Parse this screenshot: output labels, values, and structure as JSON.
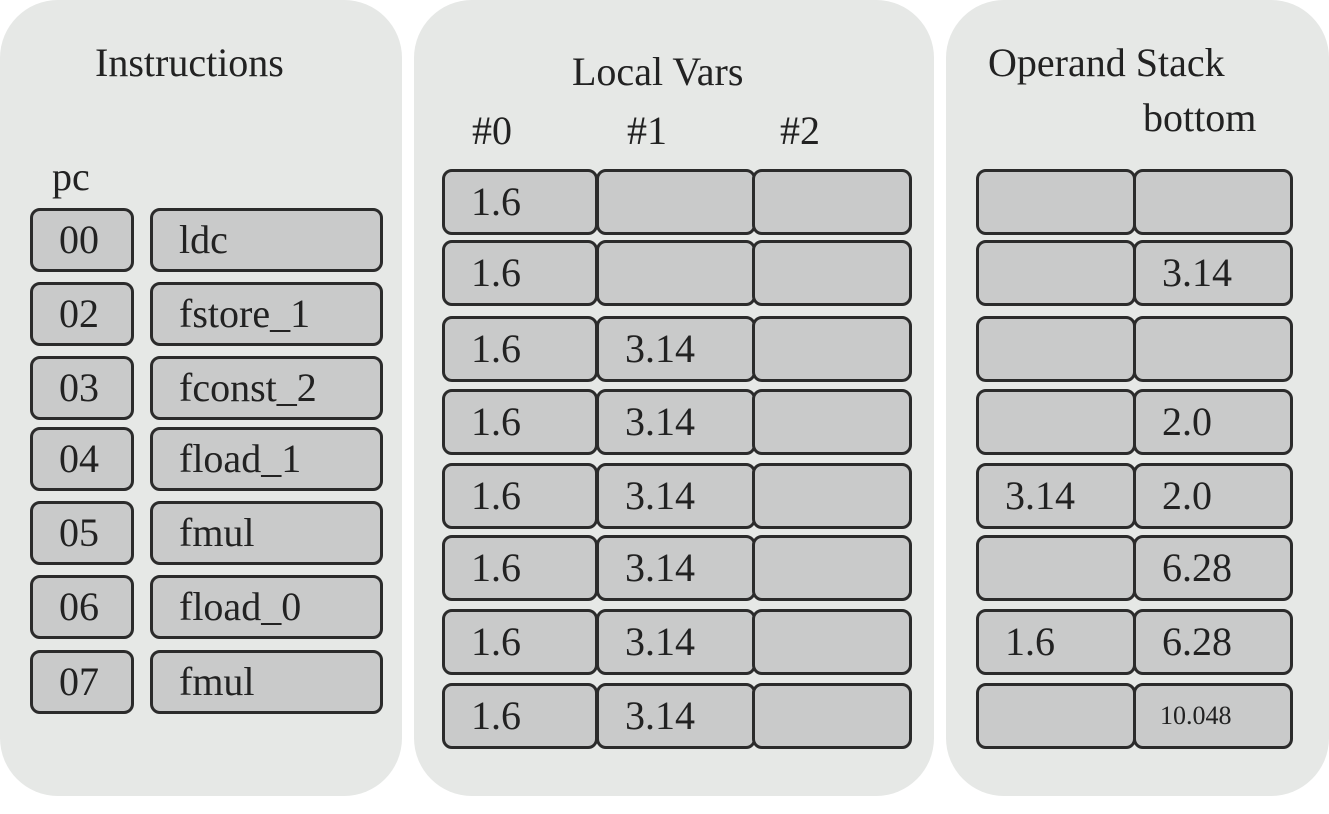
{
  "instructions": {
    "title": "Instructions",
    "pc_label": "pc",
    "rows": [
      {
        "pc": "00",
        "op": "ldc"
      },
      {
        "pc": "02",
        "op": "fstore_1"
      },
      {
        "pc": "03",
        "op": "fconst_2"
      },
      {
        "pc": "04",
        "op": "fload_1"
      },
      {
        "pc": "05",
        "op": "fmul"
      },
      {
        "pc": "06",
        "op": "fload_0"
      },
      {
        "pc": "07",
        "op": "fmul"
      }
    ]
  },
  "local_vars": {
    "title": "Local Vars",
    "headers": [
      "#0",
      "#1",
      "#2"
    ],
    "rows": [
      [
        "1.6",
        "",
        ""
      ],
      [
        "1.6",
        "",
        ""
      ],
      [
        "1.6",
        "3.14",
        ""
      ],
      [
        "1.6",
        "3.14",
        ""
      ],
      [
        "1.6",
        "3.14",
        ""
      ],
      [
        "1.6",
        "3.14",
        ""
      ],
      [
        "1.6",
        "3.14",
        ""
      ],
      [
        "1.6",
        "3.14",
        ""
      ]
    ]
  },
  "operand_stack": {
    "title": "Operand Stack",
    "bottom_label": "bottom",
    "rows": [
      [
        "",
        ""
      ],
      [
        "",
        "3.14"
      ],
      [
        "",
        ""
      ],
      [
        "",
        "2.0"
      ],
      [
        "3.14",
        "2.0"
      ],
      [
        "",
        "6.28"
      ],
      [
        "1.6",
        "6.28"
      ],
      [
        "",
        "10.048"
      ]
    ]
  }
}
